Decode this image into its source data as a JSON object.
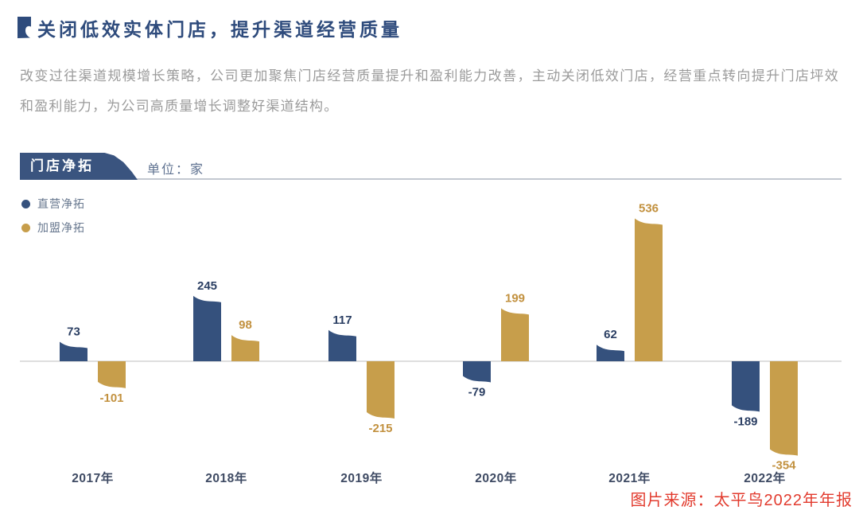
{
  "header": {
    "title": "关闭低效实体门店，提升渠道经营质量",
    "paragraph": "改变过往渠道规模增长策略，公司更加聚焦门店经营质量提升和盈利能力改善，主动关闭低效门店，经营重点转向提升门店坪效和盈利能力，为公司高质量增长调整好渠道结构。"
  },
  "chart_header": {
    "tab_label": "门店净拓",
    "unit_label": "单位：家"
  },
  "source_note": "图片来源：太平鸟2022年年报",
  "colors": {
    "title_blue": "#2E4B7C",
    "tab_bg": "#3A547F",
    "body_gray": "#9B9B9B",
    "line_gray": "#C3C8D1",
    "unit_text": "#5E7190",
    "legend_text": "#68788F",
    "axis_gray": "#CBCBCB",
    "year_label": "#3E4A63",
    "source_red": "#E23B2E",
    "bar_blue": "#35517D",
    "bar_gold": "#C79E4B",
    "label_blue": "#2B3F63",
    "label_gold": "#C2913F"
  },
  "chart_data": {
    "type": "bar",
    "title": "门店净拓",
    "unit": "家",
    "categories": [
      "2017年",
      "2018年",
      "2019年",
      "2020年",
      "2021年",
      "2022年"
    ],
    "series": [
      {
        "name": "直营净拓",
        "color": "#35517D",
        "label_color": "#2B3F63",
        "values": [
          73,
          245,
          117,
          -79,
          62,
          -189
        ]
      },
      {
        "name": "加盟净拓",
        "color": "#C79E4B",
        "label_color": "#C2913F",
        "values": [
          -101,
          98,
          -215,
          199,
          536,
          -354
        ]
      }
    ],
    "ylim": [
      -400,
      560
    ],
    "grid": false,
    "baseline": 0,
    "legend_position": "top-left",
    "value_labels": true
  }
}
